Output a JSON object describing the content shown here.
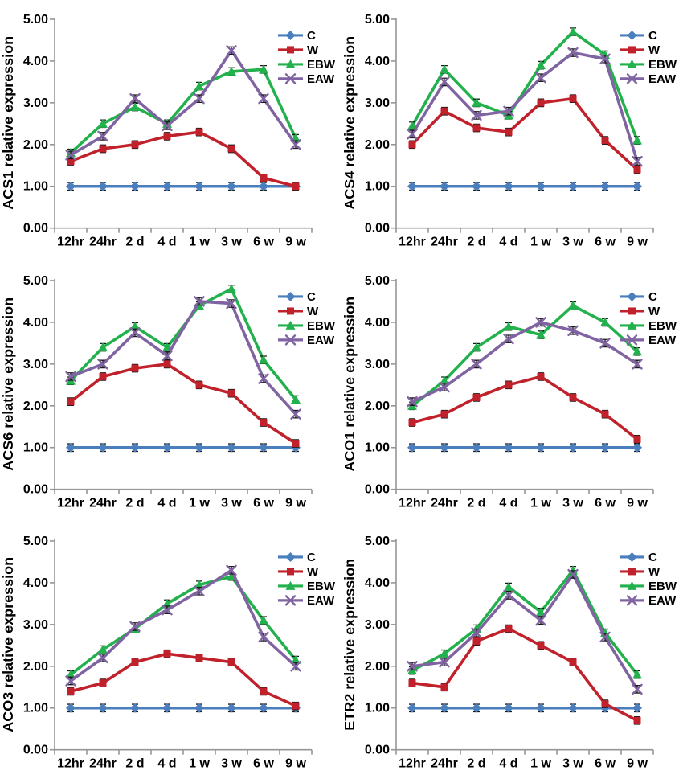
{
  "figure": {
    "description": "Six-panel gene relative expression time-course figure",
    "rows": 3,
    "cols": 2
  },
  "legend": {
    "position": "top-right",
    "items": [
      "C",
      "W",
      "EBW",
      "EAW"
    ]
  },
  "styles": {
    "series": [
      {
        "name": "C",
        "color": "#4A7EBD",
        "marker": "diamond"
      },
      {
        "name": "W",
        "color": "#C0212B",
        "marker": "square"
      },
      {
        "name": "EBW",
        "color": "#22B14C",
        "marker": "triangle"
      },
      {
        "name": "EAW",
        "color": "#8064A2",
        "marker": "x"
      }
    ],
    "axis_color": "#969696",
    "error_bar_color": "#1a1a1a"
  },
  "chart_data": [
    {
      "type": "line",
      "ylabel": "ACS1 relative expression",
      "categories": [
        "12hr",
        "24hr",
        "2 d",
        "4 d",
        "1 w",
        "3 w",
        "6 w",
        "9 w"
      ],
      "yticks": [
        "0.00",
        "1.00",
        "2.00",
        "3.00",
        "4.00",
        "5.00"
      ],
      "ylim": [
        0,
        5
      ],
      "grid": false,
      "legend_position": "top-right",
      "error_bar": 0.09,
      "series": [
        {
          "name": "C",
          "values": [
            1.0,
            1.0,
            1.0,
            1.0,
            1.0,
            1.0,
            1.0,
            1.0
          ]
        },
        {
          "name": "W",
          "values": [
            1.6,
            1.9,
            2.0,
            2.2,
            2.3,
            1.9,
            1.2,
            1.0
          ]
        },
        {
          "name": "EBW",
          "values": [
            1.8,
            2.5,
            2.9,
            2.5,
            3.4,
            3.75,
            3.8,
            2.15
          ]
        },
        {
          "name": "EAW",
          "values": [
            1.75,
            2.2,
            3.1,
            2.45,
            3.1,
            4.25,
            3.1,
            2.0
          ]
        }
      ]
    },
    {
      "type": "line",
      "ylabel": "ACS4 relative expression",
      "categories": [
        "12hr",
        "24hr",
        "2 d",
        "4 d",
        "1 w",
        "3 w",
        "6 w",
        "9 w"
      ],
      "yticks": [
        "0.00",
        "1.00",
        "2.00",
        "3.00",
        "4.00",
        "5.00"
      ],
      "ylim": [
        0,
        5
      ],
      "grid": false,
      "legend_position": "top-right",
      "error_bar": 0.09,
      "series": [
        {
          "name": "C",
          "values": [
            1.0,
            1.0,
            1.0,
            1.0,
            1.0,
            1.0,
            1.0,
            1.0
          ]
        },
        {
          "name": "W",
          "values": [
            2.0,
            2.8,
            2.4,
            2.3,
            3.0,
            3.1,
            2.1,
            1.4
          ]
        },
        {
          "name": "EBW",
          "values": [
            2.45,
            3.8,
            3.0,
            2.7,
            3.9,
            4.7,
            4.15,
            2.1
          ]
        },
        {
          "name": "EAW",
          "values": [
            2.25,
            3.5,
            2.7,
            2.8,
            3.6,
            4.2,
            4.05,
            1.6
          ]
        }
      ]
    },
    {
      "type": "line",
      "ylabel": "ACS6 relative expression",
      "categories": [
        "12hr",
        "24hr",
        "2 d",
        "4 d",
        "1 w",
        "3 w",
        "6 w",
        "9 w"
      ],
      "yticks": [
        "0.00",
        "1.00",
        "2.00",
        "3.00",
        "4.00",
        "5.00"
      ],
      "ylim": [
        0,
        5
      ],
      "grid": false,
      "legend_position": "top-right",
      "error_bar": 0.09,
      "series": [
        {
          "name": "C",
          "values": [
            1.0,
            1.0,
            1.0,
            1.0,
            1.0,
            1.0,
            1.0,
            1.0
          ]
        },
        {
          "name": "W",
          "values": [
            2.1,
            2.7,
            2.9,
            3.0,
            2.5,
            2.3,
            1.6,
            1.1
          ]
        },
        {
          "name": "EBW",
          "values": [
            2.6,
            3.4,
            3.9,
            3.4,
            4.4,
            4.8,
            3.1,
            2.15
          ]
        },
        {
          "name": "EAW",
          "values": [
            2.7,
            3.0,
            3.75,
            3.2,
            4.5,
            4.45,
            2.65,
            1.8
          ]
        }
      ]
    },
    {
      "type": "line",
      "ylabel": "ACO1 relative expression",
      "categories": [
        "12hr",
        "24hr",
        "2 d",
        "4 d",
        "1 w",
        "3 w",
        "6 w",
        "9 w"
      ],
      "yticks": [
        "0.00",
        "1.00",
        "2.00",
        "3.00",
        "4.00",
        "5.00"
      ],
      "ylim": [
        0,
        5
      ],
      "grid": false,
      "legend_position": "top-right",
      "error_bar": 0.09,
      "series": [
        {
          "name": "C",
          "values": [
            1.0,
            1.0,
            1.0,
            1.0,
            1.0,
            1.0,
            1.0,
            1.0
          ]
        },
        {
          "name": "W",
          "values": [
            1.6,
            1.8,
            2.2,
            2.5,
            2.7,
            2.2,
            1.8,
            1.2
          ]
        },
        {
          "name": "EBW",
          "values": [
            2.0,
            2.6,
            3.4,
            3.9,
            3.7,
            4.4,
            4.0,
            3.3
          ]
        },
        {
          "name": "EAW",
          "values": [
            2.1,
            2.45,
            3.0,
            3.6,
            4.0,
            3.8,
            3.5,
            3.0
          ]
        }
      ]
    },
    {
      "type": "line",
      "ylabel": "ACO3 relative expression",
      "categories": [
        "12hr",
        "24hr",
        "2 d",
        "4 d",
        "1 w",
        "3 w",
        "6 w",
        "9 w"
      ],
      "yticks": [
        "0.00",
        "1.00",
        "2.00",
        "3.00",
        "4.00",
        "5.00"
      ],
      "ylim": [
        0,
        5
      ],
      "grid": false,
      "legend_position": "top-right",
      "error_bar": 0.09,
      "series": [
        {
          "name": "C",
          "values": [
            1.0,
            1.0,
            1.0,
            1.0,
            1.0,
            1.0,
            1.0,
            1.0
          ]
        },
        {
          "name": "W",
          "values": [
            1.4,
            1.6,
            2.1,
            2.3,
            2.2,
            2.1,
            1.4,
            1.05
          ]
        },
        {
          "name": "EBW",
          "values": [
            1.8,
            2.4,
            2.9,
            3.5,
            3.95,
            4.15,
            3.1,
            2.15
          ]
        },
        {
          "name": "EAW",
          "values": [
            1.65,
            2.2,
            2.95,
            3.35,
            3.8,
            4.3,
            2.7,
            2.0
          ]
        }
      ]
    },
    {
      "type": "line",
      "ylabel": "ETR2 relative expression",
      "categories": [
        "12hr",
        "24hr",
        "2 d",
        "4 d",
        "1 w",
        "3 w",
        "6 w",
        "9 w"
      ],
      "yticks": [
        "0.00",
        "1.00",
        "2.00",
        "3.00",
        "4.00",
        "5.00"
      ],
      "ylim": [
        0,
        5
      ],
      "grid": false,
      "legend_position": "top-right",
      "error_bar": 0.09,
      "series": [
        {
          "name": "C",
          "values": [
            1.0,
            1.0,
            1.0,
            1.0,
            1.0,
            1.0,
            1.0,
            1.0
          ]
        },
        {
          "name": "W",
          "values": [
            1.6,
            1.5,
            2.6,
            2.9,
            2.5,
            2.1,
            1.1,
            0.7
          ]
        },
        {
          "name": "EBW",
          "values": [
            1.9,
            2.3,
            2.9,
            3.9,
            3.3,
            4.3,
            2.8,
            1.8
          ]
        },
        {
          "name": "EAW",
          "values": [
            2.0,
            2.1,
            2.8,
            3.7,
            3.1,
            4.2,
            2.7,
            1.45
          ]
        }
      ]
    }
  ]
}
